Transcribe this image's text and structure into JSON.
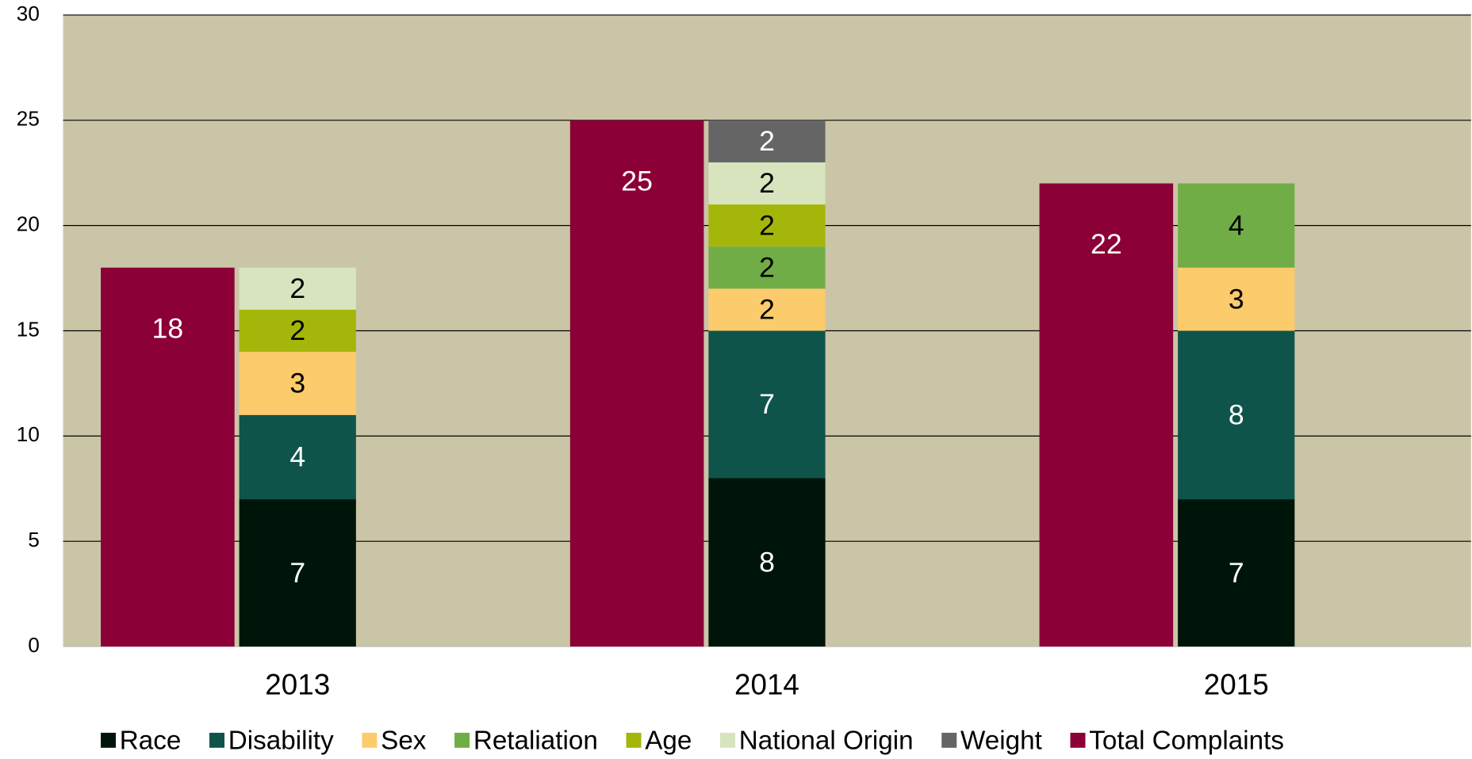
{
  "chart_data": {
    "type": "bar",
    "categories": [
      "2013",
      "2014",
      "2015"
    ],
    "series": [
      {
        "name": "Race",
        "color": "#001509",
        "values": [
          7,
          8,
          7
        ]
      },
      {
        "name": "Disability",
        "color": "#0e544b",
        "values": [
          4,
          7,
          8
        ]
      },
      {
        "name": "Sex",
        "color": "#fccb6b",
        "values": [
          3,
          2,
          3
        ]
      },
      {
        "name": "Retaliation",
        "color": "#70ad47",
        "values": [
          null,
          2,
          4
        ]
      },
      {
        "name": "Age",
        "color": "#a5b60a",
        "values": [
          2,
          2,
          null
        ]
      },
      {
        "name": "National Origin",
        "color": "#d7e4bd",
        "values": [
          2,
          2,
          null
        ]
      },
      {
        "name": "Weight",
        "color": "#656565",
        "values": [
          null,
          2,
          null
        ]
      },
      {
        "name": "Total Complaints",
        "color": "#8b0037",
        "values": [
          18,
          25,
          22
        ]
      }
    ],
    "ylim": [
      0,
      30
    ],
    "yticks": [
      0,
      5,
      10,
      15,
      20,
      25,
      30
    ],
    "grid": true,
    "legend": "bottom"
  }
}
